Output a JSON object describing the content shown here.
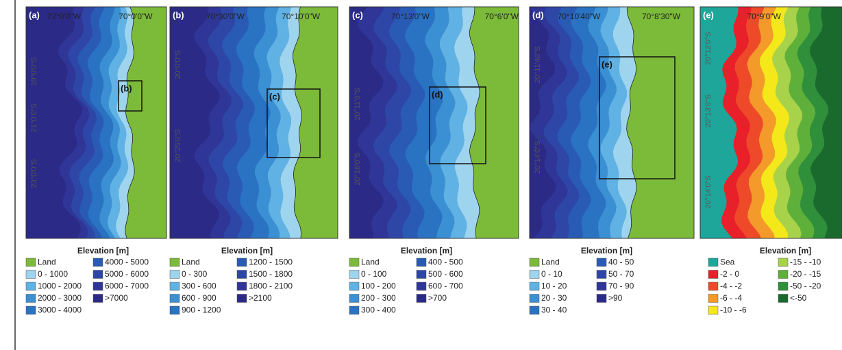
{
  "panels": [
    {
      "label": "(a)",
      "lon": [
        "72°0'0\"W",
        "70°0'0\"W"
      ],
      "lat": [
        "19°0'0\"S",
        "21°0'0\"S",
        "23°0'0\"S"
      ],
      "inset": "(b)",
      "legend": {
        "title": "Elevation [m]",
        "items": [
          {
            "label": "Land",
            "color": "#7cbb3a"
          },
          {
            "label": "0 - 1000",
            "color": "#9fd4ee"
          },
          {
            "label": "1000 - 2000",
            "color": "#5fb2e3"
          },
          {
            "label": "2000 - 3000",
            "color": "#3b8fd3"
          },
          {
            "label": "3000 - 4000",
            "color": "#2a72c2"
          },
          {
            "label": "4000 - 5000",
            "color": "#2a5bb4"
          },
          {
            "label": "5000 - 6000",
            "color": "#2e47a6"
          },
          {
            "label": "6000 - 7000",
            "color": "#2f3697"
          },
          {
            "label": ">7000",
            "color": "#2b2a86"
          }
        ]
      }
    },
    {
      "label": "(b)",
      "lon": [
        "70°30'0\"W",
        "70°10'0\"W"
      ],
      "lat": [
        "20°0'0\"S",
        "20°25'0\"S"
      ],
      "inset": "(c)",
      "legend": {
        "title": "Elevation [m]",
        "items": [
          {
            "label": "Land",
            "color": "#7cbb3a"
          },
          {
            "label": "0 - 300",
            "color": "#9fd4ee"
          },
          {
            "label": "300 - 600",
            "color": "#5fb2e3"
          },
          {
            "label": "600 - 900",
            "color": "#3b8fd3"
          },
          {
            "label": "900 - 1200",
            "color": "#2a72c2"
          },
          {
            "label": "1200 - 1500",
            "color": "#2a5bb4"
          },
          {
            "label": "1500 - 1800",
            "color": "#2e47a6"
          },
          {
            "label": "1800 - 2100",
            "color": "#2f3697"
          },
          {
            "label": ">2100",
            "color": "#2b2a86"
          }
        ]
      }
    },
    {
      "label": "(c)",
      "lon": [
        "70°13'0\"W",
        "70°6'0\"W"
      ],
      "lat": [
        "20°11'0\"S",
        "20°16'0\"S"
      ],
      "inset": "(d)",
      "legend": {
        "title": "Elevation [m]",
        "items": [
          {
            "label": "Land",
            "color": "#7cbb3a"
          },
          {
            "label": "0 - 100",
            "color": "#9fd4ee"
          },
          {
            "label": "100 - 200",
            "color": "#5fb2e3"
          },
          {
            "label": "200 - 300",
            "color": "#3b8fd3"
          },
          {
            "label": "300 - 400",
            "color": "#2a72c2"
          },
          {
            "label": "400 - 500",
            "color": "#2a5bb4"
          },
          {
            "label": "500 - 600",
            "color": "#2e47a6"
          },
          {
            "label": "600 - 700",
            "color": "#2f3697"
          },
          {
            "label": ">700",
            "color": "#2b2a86"
          }
        ]
      }
    },
    {
      "label": "(d)",
      "lon": [
        "70°10'40\"W",
        "70°8'30\"W"
      ],
      "lat": [
        "20°11'40\"S",
        "20°14'0\"S"
      ],
      "inset": "(e)",
      "legend": {
        "title": "Elevation [m]",
        "items": [
          {
            "label": "Land",
            "color": "#7cbb3a"
          },
          {
            "label": "0 - 10",
            "color": "#9fd4ee"
          },
          {
            "label": "10 - 20",
            "color": "#5fb2e3"
          },
          {
            "label": "20 - 30",
            "color": "#3b8fd3"
          },
          {
            "label": "30 - 40",
            "color": "#2a72c2"
          },
          {
            "label": "40 - 50",
            "color": "#2a5bb4"
          },
          {
            "label": "50 - 70",
            "color": "#2e47a6"
          },
          {
            "label": "70 - 90",
            "color": "#2f3697"
          },
          {
            "label": ">90",
            "color": "#2b2a86"
          }
        ]
      }
    },
    {
      "label": "(e)",
      "lon": [
        "70°9'0\"W"
      ],
      "lat": [
        "20°12'0\"S",
        "20°13'0\"S",
        "20°14'0\"S"
      ],
      "legend": {
        "title": "Elevation [m]",
        "items": [
          {
            "label": "Sea",
            "color": "#1fa69a"
          },
          {
            "label": "-2 - 0",
            "color": "#e8202a"
          },
          {
            "label": "-4 - -2",
            "color": "#ee4a2a"
          },
          {
            "label": "-6 - -4",
            "color": "#f39a2a"
          },
          {
            "label": "-10 - -6",
            "color": "#f4e81a"
          },
          {
            "label": "-15 - -10",
            "color": "#a8d24a"
          },
          {
            "label": "-20 - -15",
            "color": "#5fb03a"
          },
          {
            "label": "-50 - -20",
            "color": "#2f8f3a"
          },
          {
            "label": "<-50",
            "color": "#1a6a2e"
          }
        ]
      }
    }
  ]
}
